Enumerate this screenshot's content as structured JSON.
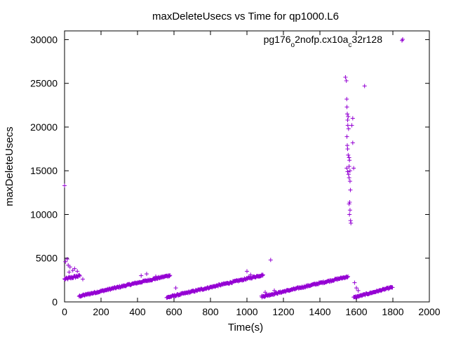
{
  "chart_data": {
    "type": "scatter",
    "title": "maxDeleteUsecs vs Time for qp1000.L6",
    "xlabel": "Time(s)",
    "ylabel": "maxDeleteUsecs",
    "xlim": [
      0,
      2000
    ],
    "ylim": [
      0,
      31000
    ],
    "xticks": [
      0,
      200,
      400,
      600,
      800,
      1000,
      1200,
      1400,
      1600,
      1800,
      2000
    ],
    "yticks": [
      0,
      5000,
      10000,
      15000,
      20000,
      25000,
      30000
    ],
    "grid": false,
    "legend_position": "top-right",
    "marker": "+",
    "color": "#9400d3",
    "series": [
      {
        "name": "pg176_o2nofp.cx10a_c32r128",
        "legend_parts": [
          {
            "text": "pg176",
            "sub": false
          },
          {
            "text": "o",
            "sub": true
          },
          {
            "text": "2nofp.cx10a",
            "sub": false
          },
          {
            "text": "c",
            "sub": true
          },
          {
            "text": "32r128",
            "sub": false
          }
        ],
        "segments": [
          {
            "x_start": 0,
            "x_end": 85,
            "y_start": 2600,
            "y_end": 3000,
            "step": 3,
            "jitter": 250
          },
          {
            "x_start": 80,
            "x_end": 580,
            "y_start": 650,
            "y_end": 3050,
            "step": 3,
            "jitter": 180
          },
          {
            "x_start": 560,
            "x_end": 1090,
            "y_start": 500,
            "y_end": 3100,
            "step": 3,
            "jitter": 180
          },
          {
            "x_start": 1080,
            "x_end": 1555,
            "y_start": 600,
            "y_end": 2900,
            "step": 3,
            "jitter": 180
          },
          {
            "x_start": 1585,
            "x_end": 1800,
            "y_start": 500,
            "y_end": 1700,
            "step": 3,
            "jitter": 150
          }
        ],
        "points": [
          [
            0,
            13300
          ],
          [
            5,
            4600
          ],
          [
            15,
            4900
          ],
          [
            20,
            4200
          ],
          [
            25,
            3400
          ],
          [
            30,
            4000
          ],
          [
            45,
            3600
          ],
          [
            55,
            3800
          ],
          [
            70,
            3500
          ],
          [
            100,
            2600
          ],
          [
            420,
            3000
          ],
          [
            450,
            3200
          ],
          [
            500,
            2900
          ],
          [
            575,
            3000
          ],
          [
            610,
            1600
          ],
          [
            1000,
            3500
          ],
          [
            1020,
            3100
          ],
          [
            1070,
            2900
          ],
          [
            1130,
            4800
          ],
          [
            1100,
            1100
          ],
          [
            1150,
            1300
          ],
          [
            1540,
            25700
          ],
          [
            1545,
            25300
          ],
          [
            1547,
            23200
          ],
          [
            1548,
            22300
          ],
          [
            1550,
            21500
          ],
          [
            1552,
            20800
          ],
          [
            1553,
            20200
          ],
          [
            1555,
            21200
          ],
          [
            1557,
            19800
          ],
          [
            1548,
            18900
          ],
          [
            1550,
            17900
          ],
          [
            1552,
            17500
          ],
          [
            1555,
            16800
          ],
          [
            1560,
            16500
          ],
          [
            1562,
            16200
          ],
          [
            1560,
            15500
          ],
          [
            1547,
            15300
          ],
          [
            1552,
            14900
          ],
          [
            1565,
            15000
          ],
          [
            1557,
            14600
          ],
          [
            1560,
            14200
          ],
          [
            1565,
            13800
          ],
          [
            1567,
            12800
          ],
          [
            1563,
            11400
          ],
          [
            1560,
            11200
          ],
          [
            1565,
            10500
          ],
          [
            1562,
            10000
          ],
          [
            1568,
            9300
          ],
          [
            1570,
            9000
          ],
          [
            1575,
            20200
          ],
          [
            1580,
            21000
          ],
          [
            1580,
            18200
          ],
          [
            1585,
            15300
          ],
          [
            1645,
            24700
          ],
          [
            1850,
            29900
          ],
          [
            1590,
            2200
          ],
          [
            1600,
            1600
          ],
          [
            1610,
            1300
          ]
        ]
      }
    ]
  }
}
